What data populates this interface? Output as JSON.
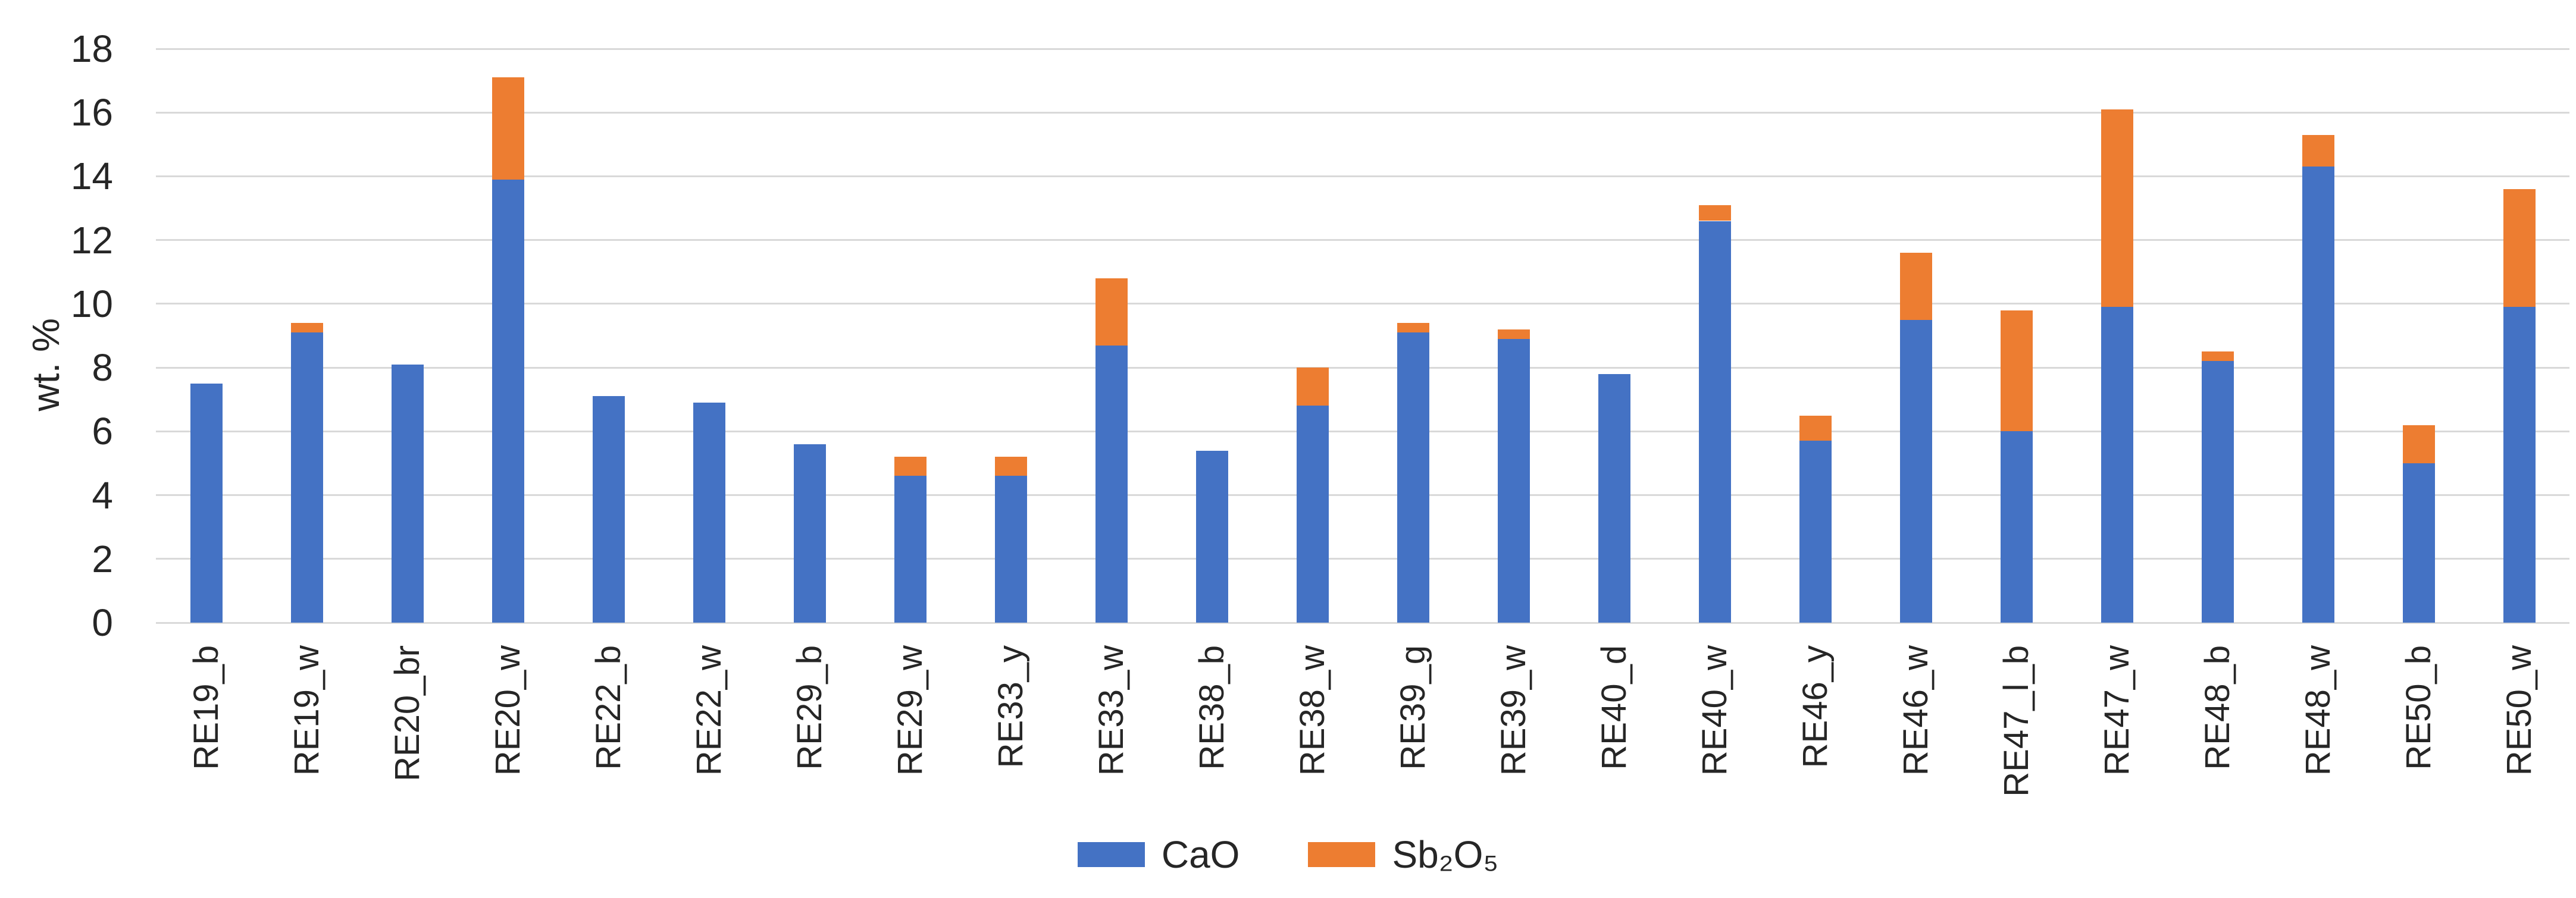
{
  "chart_data": {
    "type": "bar",
    "stacked": true,
    "title": "",
    "xlabel": "",
    "ylabel": "wt. %",
    "ylim": [
      0,
      18
    ],
    "ytick_step": 2,
    "yticks": [
      0,
      2,
      4,
      6,
      8,
      10,
      12,
      14,
      16,
      18
    ],
    "grid": true,
    "gridline_color": "#D9D9D9",
    "axis_text_color": "#262626",
    "background_color": "#FFFFFF",
    "legend_position": "bottom",
    "categories": [
      "RE19_b",
      "RE19_w",
      "RE20_br",
      "RE20_w",
      "RE22_b",
      "RE22_w",
      "RE29_b",
      "RE29_w",
      "RE33_y",
      "RE33_w",
      "RE38_b",
      "RE38_w",
      "RE39_g",
      "RE39_w",
      "RE40_d",
      "RE40_w",
      "RE46_y",
      "RE46_w",
      "RE47_l_b",
      "RE47_w",
      "RE48_b",
      "RE48_w",
      "RE50_b",
      "RE50_w"
    ],
    "series": [
      {
        "name": "CaO",
        "color": "#4472C4",
        "values": [
          7.5,
          9.1,
          8.1,
          13.9,
          7.1,
          6.9,
          5.6,
          4.6,
          4.6,
          8.7,
          5.4,
          6.8,
          9.1,
          8.9,
          7.8,
          12.6,
          5.7,
          9.5,
          6.0,
          9.9,
          8.2,
          14.3,
          5.0,
          9.9
        ]
      },
      {
        "name": "Sb₂O₅",
        "color": "#ED7D31",
        "values": [
          0.0,
          0.3,
          0.0,
          3.2,
          0.0,
          0.0,
          0.0,
          0.6,
          0.6,
          2.1,
          0.0,
          1.2,
          0.3,
          0.3,
          0.0,
          0.5,
          0.8,
          2.1,
          3.8,
          6.2,
          0.3,
          1.0,
          1.2,
          3.7
        ]
      }
    ]
  }
}
